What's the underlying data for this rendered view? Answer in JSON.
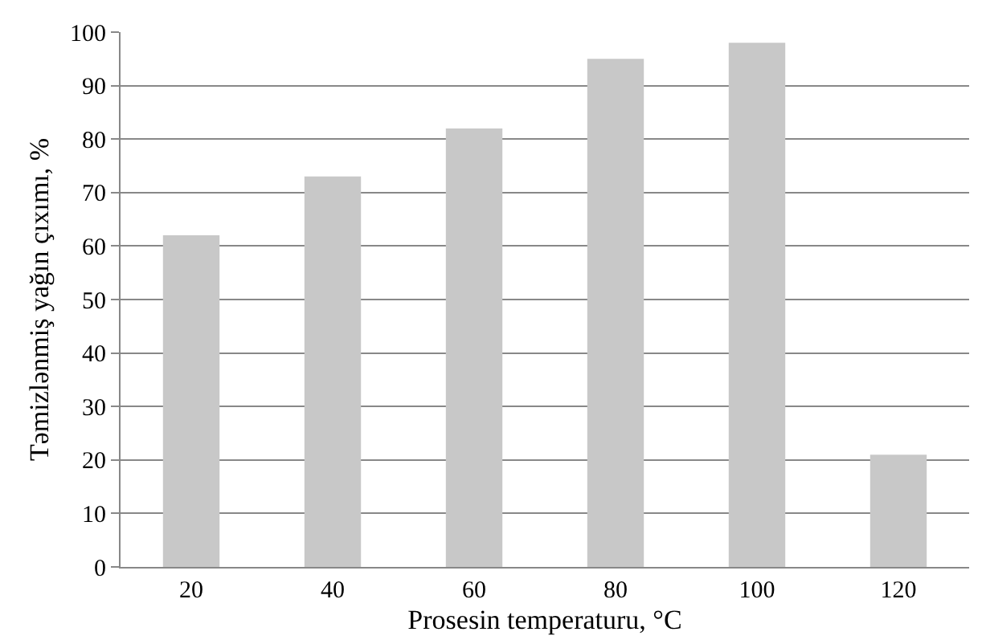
{
  "chart_data": {
    "type": "bar",
    "xlabel": "Prosesin temperaturu, °C",
    "ylabel": "Təmizlənmiş yağın çıxımı, %",
    "categories": [
      "20",
      "40",
      "60",
      "80",
      "100",
      "120"
    ],
    "values": [
      62,
      73,
      82,
      95,
      98,
      21
    ],
    "color": "#c8c8c8",
    "ylim": [
      0,
      100
    ],
    "yticks": [
      0,
      10,
      20,
      30,
      40,
      50,
      60,
      70,
      80,
      90,
      100
    ],
    "grid": "y"
  }
}
